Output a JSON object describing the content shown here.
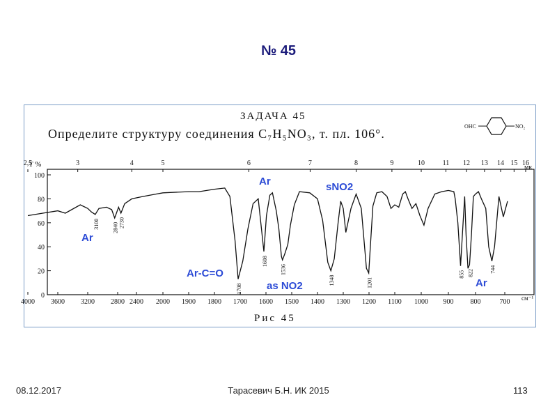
{
  "slide": {
    "title": "№ 45",
    "footer": {
      "date": "08.12.2017",
      "author": "Тарасевич Б.Н.   ИК 2015",
      "page": "113"
    }
  },
  "figure": {
    "problem_heading": "ЗАДАЧА 45",
    "problem_text": "Определите структуру соединения C₇H₅NO₃, т. пл. 106°.",
    "structure": {
      "left_group": "OHC",
      "right_group": "NO₂"
    },
    "caption": "Рис 45"
  },
  "chart_data": {
    "type": "line",
    "title": "",
    "xlabel": "",
    "ylabel": "T %",
    "x_unit": "см⁻¹",
    "top_axis_unit": "мк",
    "ylim": [
      0,
      100
    ],
    "xlim": [
      4000,
      600
    ],
    "x_ticks": [
      "4000",
      "3600",
      "3200",
      "2800",
      "2400",
      "2000",
      "1900",
      "1800",
      "1700",
      "1600",
      "1500",
      "1400",
      "1300",
      "1200",
      "1100",
      "1000",
      "900",
      "800",
      "700"
    ],
    "y_ticks": [
      "0",
      "20",
      "40",
      "60",
      "80",
      "100"
    ],
    "top_ticks": [
      "2,5",
      "3",
      "4",
      "5",
      "6",
      "7",
      "8",
      "9",
      "10",
      "11",
      "12",
      "13",
      "14",
      "15",
      "16"
    ],
    "grid": false,
    "x": [
      4000,
      3800,
      3600,
      3500,
      3300,
      3200,
      3150,
      3100,
      3050,
      2950,
      2880,
      2840,
      2780,
      2730,
      2650,
      2500,
      2300,
      2100,
      2000,
      1900,
      1860,
      1800,
      1760,
      1740,
      1720,
      1708,
      1690,
      1670,
      1650,
      1630,
      1620,
      1608,
      1598,
      1585,
      1575,
      1560,
      1550,
      1540,
      1536,
      1527,
      1515,
      1505,
      1490,
      1470,
      1430,
      1400,
      1380,
      1360,
      1348,
      1335,
      1320,
      1310,
      1300,
      1290,
      1270,
      1250,
      1230,
      1210,
      1201,
      1195,
      1185,
      1170,
      1150,
      1130,
      1115,
      1100,
      1085,
      1070,
      1060,
      1050,
      1035,
      1020,
      1005,
      990,
      975,
      950,
      925,
      900,
      880,
      875,
      865,
      855,
      848,
      840,
      835,
      828,
      822,
      815,
      808,
      800,
      790,
      780,
      765,
      755,
      744,
      735,
      720,
      705,
      690
    ],
    "series": [
      {
        "values": [
          66,
          68,
          70,
          68,
          75,
          72,
          69,
          67,
          72,
          73,
          71,
          64,
          73,
          68,
          76,
          80,
          82,
          84,
          85,
          86,
          86,
          88,
          89,
          82,
          45,
          13,
          28,
          55,
          76,
          80,
          60,
          36,
          66,
          83,
          85,
          70,
          55,
          32,
          29,
          34,
          42,
          58,
          75,
          86,
          85,
          80,
          62,
          27,
          20,
          30,
          60,
          78,
          72,
          52,
          72,
          84,
          72,
          22,
          18,
          40,
          74,
          85,
          86,
          82,
          72,
          75,
          73,
          84,
          86,
          80,
          72,
          76,
          66,
          58,
          72,
          84,
          86,
          87,
          86,
          80,
          60,
          24,
          52,
          82,
          50,
          22,
          25,
          50,
          82,
          84,
          86,
          80,
          72,
          40,
          28,
          40,
          82,
          65,
          78
        ]
      }
    ],
    "peak_labels": [
      "3100",
      "2840",
      "2730",
      "1708",
      "1608",
      "1536",
      "1348",
      "1201",
      "855",
      "822",
      "744"
    ],
    "annotations": [
      "Ar",
      "Ar",
      "sNO2",
      "Ar-C=O",
      "as NO2",
      "Ar"
    ]
  }
}
